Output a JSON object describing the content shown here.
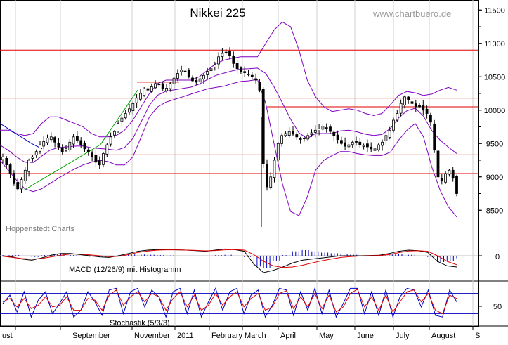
{
  "header": {
    "title": "Nikkei 225",
    "watermark": "www.chartbuero.de",
    "source": "Hoppenstedt Charts"
  },
  "colors": {
    "candles": "#000000",
    "bollinger": "#8000c0",
    "support_lines": "#e00000",
    "trend_line": "#00a000",
    "moving_average": "#0000c0",
    "macd_line": "#000000",
    "macd_signal": "#e00000",
    "macd_histogram": "#0000c0",
    "stoch_k": "#0000c0",
    "stoch_d": "#e00000"
  },
  "chart_data": [
    {
      "type": "candlestick",
      "title": "Nikkei 225",
      "x_ticks": [
        "ust",
        "September",
        "November",
        "2011",
        "February",
        "March",
        "April",
        "May",
        "June",
        "July",
        "August",
        "S"
      ],
      "y_ticks": [
        11500,
        11000,
        10500,
        10000,
        9500,
        9000,
        8500
      ],
      "ylim": [
        8050,
        11650
      ],
      "horizontal_levels": [
        10900,
        10180,
        10050,
        9330,
        9050
      ],
      "short_levels": [
        {
          "from": "November",
          "to": "2011",
          "value": 10420
        }
      ],
      "close_series": [
        9300,
        9180,
        9050,
        8900,
        8820,
        8960,
        9100,
        9250,
        9300,
        9380,
        9480,
        9530,
        9580,
        9600,
        9520,
        9450,
        9380,
        9420,
        9520,
        9600,
        9550,
        9480,
        9420,
        9380,
        9300,
        9220,
        9180,
        9350,
        9480,
        9600,
        9680,
        9800,
        9880,
        9950,
        10020,
        10100,
        10180,
        10250,
        10320,
        10300,
        10350,
        10400,
        10380,
        10320,
        10330,
        10400,
        10480,
        10550,
        10600,
        10580,
        10500,
        10440,
        10420,
        10470,
        10520,
        10580,
        10620,
        10680,
        10800,
        10850,
        10860,
        10820,
        10700,
        10620,
        10580,
        10560,
        10540,
        10500,
        10450,
        10300,
        9200,
        8850,
        9000,
        9250,
        9500,
        9620,
        9650,
        9680,
        9640,
        9600,
        9560,
        9580,
        9620,
        9660,
        9700,
        9720,
        9760,
        9720,
        9680,
        9620,
        9560,
        9500,
        9460,
        9480,
        9520,
        9520,
        9480,
        9470,
        9450,
        9420,
        9420,
        9480,
        9520,
        9620,
        9700,
        9850,
        9950,
        10100,
        10200,
        10150,
        10100,
        10050,
        10050,
        10000,
        9950,
        9820,
        9400,
        9000,
        8950,
        9050,
        9100,
        8980,
        8750
      ],
      "bollinger_upper": [
        9700,
        9700,
        9650,
        9620,
        9650,
        9800,
        9900,
        9900,
        9850,
        9800,
        9750,
        9650,
        9600,
        9600,
        9620,
        9700,
        9850,
        10050,
        10250,
        10400,
        10450,
        10450,
        10450,
        10450,
        10500,
        10600,
        10700,
        10750,
        10780,
        10800,
        10800,
        10800,
        11000,
        11200,
        11320,
        11250,
        10900,
        10450,
        10200,
        10050,
        9980,
        10000,
        10020,
        10000,
        9950,
        9920,
        9950,
        10080,
        10220,
        10280,
        10260,
        10220,
        10240,
        10300,
        10340,
        10300
      ],
      "bollinger_lower": [
        9250,
        9100,
        8950,
        8820,
        8780,
        8820,
        8900,
        8980,
        9050,
        9120,
        9180,
        9220,
        9250,
        9230,
        9180,
        9180,
        9300,
        9600,
        9900,
        10050,
        10120,
        10160,
        10200,
        10240,
        10280,
        10320,
        10340,
        10360,
        10400,
        10430,
        10440,
        10460,
        10100,
        9500,
        8900,
        8480,
        8420,
        8700,
        9100,
        9250,
        9320,
        9380,
        9380,
        9350,
        9330,
        9320,
        9320,
        9370,
        9550,
        9700,
        9800,
        9600,
        9150,
        8800,
        8550,
        8400
      ],
      "moving_average": [
        9800,
        9700,
        9600,
        9500,
        9420
      ],
      "trend_line": [
        {
          "x": "September",
          "y": 8800
        },
        {
          "x": "November",
          "y": 9800
        }
      ],
      "macd": {
        "title": "MACD (12/26/9) mit Histogramm",
        "zero_label": "0",
        "line": [
          0,
          -20,
          -60,
          -80,
          -40,
          10,
          40,
          40,
          20,
          0,
          -20,
          -30,
          0,
          40,
          80,
          100,
          110,
          110,
          105,
          100,
          90,
          80,
          100,
          120,
          110,
          80,
          -150,
          -300,
          -260,
          -200,
          -130,
          -80,
          -60,
          -40,
          -20,
          0,
          0,
          0,
          5,
          10,
          40,
          80,
          100,
          90,
          60,
          -100,
          -180,
          -200
        ],
        "signal": [
          -10,
          -30,
          -50,
          -60,
          -50,
          -20,
          10,
          30,
          30,
          15,
          0,
          -15,
          -10,
          20,
          60,
          85,
          100,
          105,
          105,
          100,
          95,
          88,
          92,
          105,
          110,
          100,
          20,
          -100,
          -180,
          -210,
          -200,
          -170,
          -130,
          -90,
          -60,
          -30,
          -15,
          -5,
          0,
          5,
          20,
          55,
          85,
          90,
          80,
          0,
          -100,
          -160
        ]
      },
      "stochastic": {
        "title": "Stochastik (5/3/3)",
        "level_label": "50",
        "k": [
          50,
          75,
          25,
          85,
          10,
          60,
          85,
          20,
          50,
          85,
          10,
          30,
          85,
          55,
          15,
          90,
          95,
          20,
          85,
          95,
          40,
          90,
          70,
          10,
          85,
          95,
          20,
          90,
          10,
          55,
          95,
          30,
          85,
          95,
          20,
          75,
          90,
          10,
          45,
          95,
          90,
          15,
          85,
          30,
          95,
          20,
          90,
          10,
          50,
          95,
          95,
          20,
          85,
          15,
          90,
          10,
          70,
          95,
          90,
          40,
          90,
          15,
          10,
          90,
          55
        ],
        "d": [
          55,
          65,
          40,
          65,
          35,
          45,
          70,
          40,
          45,
          70,
          30,
          30,
          65,
          60,
          30,
          75,
          90,
          45,
          70,
          85,
          55,
          80,
          70,
          30,
          65,
          85,
          40,
          75,
          30,
          45,
          80,
          45,
          70,
          85,
          40,
          65,
          80,
          30,
          40,
          80,
          88,
          35,
          70,
          40,
          80,
          35,
          75,
          25,
          40,
          80,
          92,
          40,
          70,
          30,
          75,
          25,
          55,
          85,
          90,
          55,
          80,
          30,
          20,
          75,
          65
        ]
      }
    }
  ]
}
